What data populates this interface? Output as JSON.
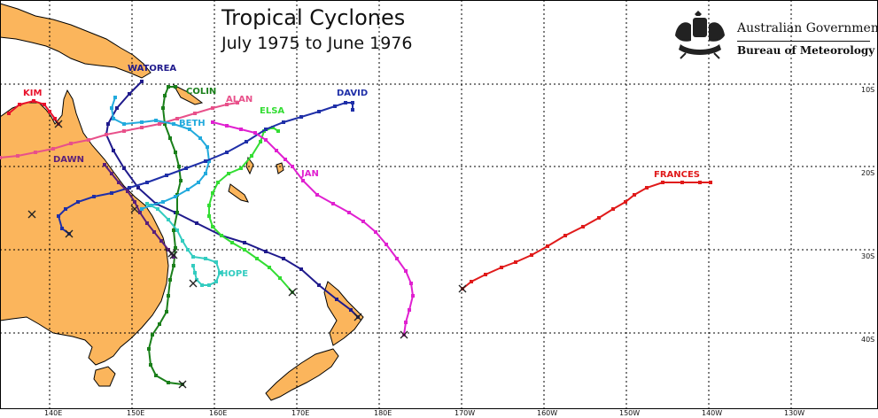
{
  "title": "Tropical Cyclones",
  "subtitle": "July 1975 to June 1976",
  "agency": {
    "name": "Australian Government",
    "bureau": "Bureau of Meteorology"
  },
  "lon_labels": [
    "140E",
    "150E",
    "160E",
    "170E",
    "180E",
    "170W",
    "160W",
    "150W",
    "140W",
    "130W"
  ],
  "lat_labels": [
    "10S",
    "20S",
    "30S",
    "40S"
  ],
  "colors": {
    "land": "#fbb55c",
    "grid": "#000000"
  },
  "cyclones": [
    {
      "name": "KIM",
      "color": "#e8102a"
    },
    {
      "name": "WATOREA",
      "color": "#1f1a8c"
    },
    {
      "name": "COLIN",
      "color": "#1a7f1a"
    },
    {
      "name": "ALAN",
      "color": "#e8508a"
    },
    {
      "name": "BETH",
      "color": "#22aadd"
    },
    {
      "name": "ELSA",
      "color": "#33dd33"
    },
    {
      "name": "DAVID",
      "color": "#1f2fa8"
    },
    {
      "name": "DAWN",
      "color": "#5a1f7a"
    },
    {
      "name": "JAN",
      "color": "#e020d0"
    },
    {
      "name": "HOPE",
      "color": "#33ccc0"
    },
    {
      "name": "FRANCES",
      "color": "#e01a1a"
    }
  ]
}
